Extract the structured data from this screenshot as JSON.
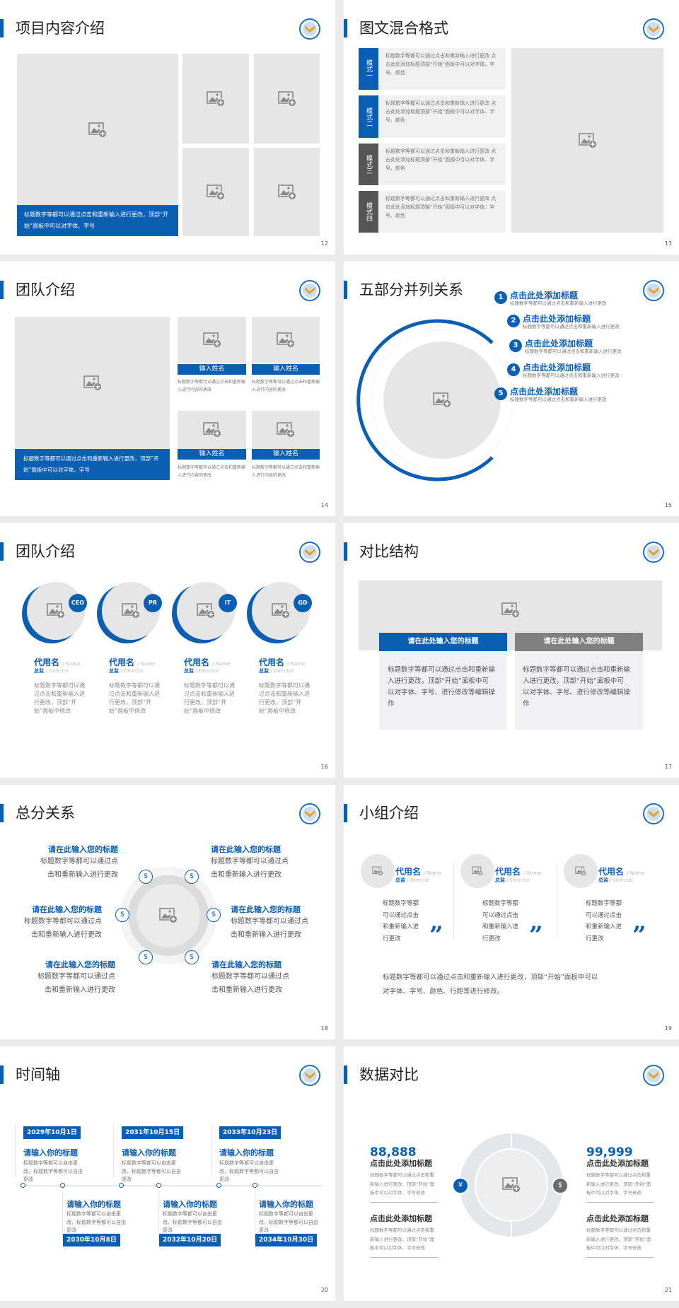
{
  "colors": {
    "accent": "#0b5fb3",
    "gray_label": "#555555",
    "placeholder": "#e6e6e6"
  },
  "icons": {
    "image_placeholder": "image-add-icon",
    "logo": "school-emblem",
    "money_bag": "money-bag-icon"
  },
  "s12": {
    "title": "项目内容介绍",
    "caption": "标题数字等都可以通过点击和重新输入进行更改，顶部“开始”面板中可以对字体、字号",
    "page": "12"
  },
  "s13": {
    "title": "图文混合格式",
    "page": "13",
    "rows": [
      {
        "label": "模式一",
        "text": "标题数字等都可以通过点击和重新输入进行更改 点击此处添加标题顶部“开始”面板中可以对字体、字号、颜色"
      },
      {
        "label": "模式二",
        "text": "标题数字等都可以通过点击和重新输入进行更改 点击此处添加标题顶部“开始”面板中可以对字体、字号、颜色"
      },
      {
        "label": "模式三",
        "text": "标题数字等都可以通过点击和重新输入进行更改 点击此处添加标题顶部“开始”面板中可以对字体、字号、颜色"
      },
      {
        "label": "模式四",
        "text": "标题数字等都可以通过点击和重新输入进行更改 点击此处添加标题顶部“开始”面板中可以对字体、字号、颜色"
      }
    ]
  },
  "s14": {
    "title": "团队介绍",
    "page": "14",
    "caption": "标题数字等都可以通过点击和重新输入进行更改，顶部“开始”面板中可以对字体、字号",
    "members": [
      {
        "name": "输入姓名",
        "text": "标题数字等都可以通过点击和重新输入进行内容的更改"
      },
      {
        "name": "输入姓名",
        "text": "标题数字等都可以通过点击和重新输入进行内容的更改"
      },
      {
        "name": "输入姓名",
        "text": "标题数字等都可以通过点击和重新输入进行内容的更改"
      },
      {
        "name": "输入姓名",
        "text": "标题数字等都可以通过点击和重新输入进行内容的更改"
      }
    ]
  },
  "s15": {
    "title": "五部分并列关系",
    "page": "15",
    "items": [
      {
        "n": "1",
        "title": "点击此处添加标题",
        "text": "标题数字等都可以通过点击和重新输入进行更改"
      },
      {
        "n": "2",
        "title": "点击此处添加标题",
        "text": "标题数字等都可以通过点击和重新输入进行更改"
      },
      {
        "n": "3",
        "title": "点击此处添加标题",
        "text": "标题数字等都可以通过点击和重新输入进行更改"
      },
      {
        "n": "4",
        "title": "点击此处添加标题",
        "text": "标题数字等都可以通过点击和重新输入进行更改"
      },
      {
        "n": "5",
        "title": "点击此处添加标题",
        "text": "标题数字等都可以通过点击和重新输入进行更改"
      }
    ]
  },
  "s16": {
    "title": "团队介绍",
    "page": "16",
    "name_suffix": "/ Name",
    "role": "总监",
    "role_suffix": "/ Director",
    "members": [
      {
        "badge": "CEO",
        "name": "代用名",
        "text": "标题数字等都可以通过点击和重新输入进行更改，顶部“开始”面板中修改"
      },
      {
        "badge": "PR",
        "name": "代用名",
        "text": "标题数字等都可以通过点击和重新输入进行更改，顶部“开始”面板中修改"
      },
      {
        "badge": "IT",
        "name": "代用名",
        "text": "标题数字等都可以通过点击和重新输入进行更改，顶部“开始”面板中修改"
      },
      {
        "badge": "GD",
        "name": "代用名",
        "text": "标题数字等都可以通过点击和重新输入进行更改，顶部“开始”面板中修改"
      }
    ]
  },
  "s17": {
    "title": "对比结构",
    "page": "17",
    "cards": [
      {
        "head": "请在此处输入您的标题",
        "text": "标题数字等都可以通过点击和重新输入进行更改，顶部“开始”面板中可以对字体、字号、进行修改等编辑操作"
      },
      {
        "head": "请在此处输入您的标题",
        "text": "标题数字等都可以通过点击和重新输入进行更改，顶部“开始”面板中可以对字体、字号、进行修改等编辑操作"
      }
    ]
  },
  "s18": {
    "title": "总分关系",
    "page": "18",
    "item_title": "请在此输入您的标题",
    "line1": "标题数字等都可以通过点",
    "line2": "击和重新输入进行更改"
  },
  "s19": {
    "title": "小组介绍",
    "page": "19",
    "name": "代用名",
    "name_suffix": "/ Name",
    "role": "总监",
    "role_suffix": "/ Director",
    "desc": [
      "标题数字等都",
      "可以通过点击",
      "和重新输入进",
      "行更改"
    ],
    "quote": "”",
    "bottom": [
      "标题数字等都可以通过点击和重新输入进行更改，顶部“开始”面板中可以",
      "对字体、字号、颜色、行距等进行修改。"
    ]
  },
  "s20": {
    "title": "时间轴",
    "page": "20",
    "item_title": "请输入你的标题",
    "desc": "标题数字等都可以自由更改，标题数字等都可以自由更改",
    "dates": [
      "2029年10月1日",
      "2030年10月8日",
      "2031年10月15日",
      "2032年10月20日",
      "2033年10月23日",
      "2034年10月30日"
    ]
  },
  "s21": {
    "title": "数据对比",
    "page": "21",
    "left_value": "88,888",
    "right_value": "99,999",
    "item_title": "点击此处添加标题",
    "desc": "标题数字等都可以通过点击和重新输入进行更改，顶部“开始”面板中可以对字体、字号修改"
  }
}
